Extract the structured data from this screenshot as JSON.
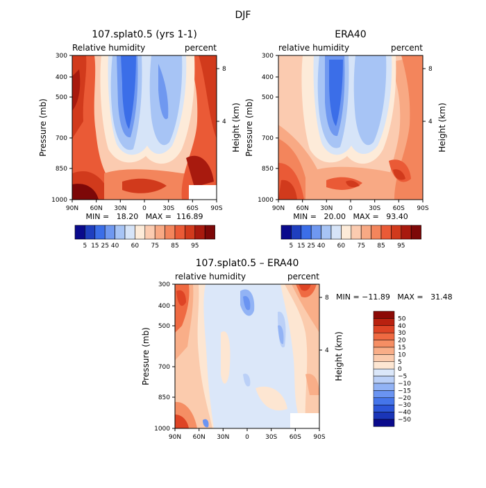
{
  "figure_title": "DJF",
  "colors": {
    "abs_scale": [
      "#0a0a8c",
      "#1f3fbf",
      "#3b6ee8",
      "#6f98f0",
      "#a7c4f5",
      "#d6e4f8",
      "#fdebd9",
      "#fbcbb0",
      "#f8a984",
      "#f3855c",
      "#ea5a36",
      "#d13a1c",
      "#a81a0e",
      "#7d0808"
    ],
    "diff_scale": [
      "#0a0a8c",
      "#1a35b8",
      "#2c55d8",
      "#4575ea",
      "#6a94f2",
      "#92b3f5",
      "#bbd0f7",
      "#dbe7f9",
      "#fde6d2",
      "#fbcbad",
      "#f9ae88",
      "#f58e64",
      "#ef6a42",
      "#de4425",
      "#b9210f",
      "#8c0a06"
    ]
  },
  "chart_data": [
    {
      "type": "heatmap",
      "title": "107.splat0.5 (yrs 1-1)",
      "left_label": "Relative humidity",
      "right_label": "percent",
      "xlabel": "",
      "ylabel": "Pressure (mb)",
      "y2label": "Height (km)",
      "x_ticks": [
        "90N",
        "60N",
        "30N",
        "0",
        "30S",
        "60S",
        "90S"
      ],
      "y_ticks": [
        "300",
        "400",
        "500",
        "700",
        "850",
        "1000"
      ],
      "y2_ticks": [
        "8",
        "4"
      ],
      "stats": "MIN =   18.20   MAX =  116.89",
      "min": 18.2,
      "max": 116.89,
      "colorbar_labels": [
        "5",
        "15",
        "25",
        "40",
        "60",
        "75",
        "85",
        "95"
      ]
    },
    {
      "type": "heatmap",
      "title": "ERA40",
      "left_label": "relative humidity",
      "right_label": "percent",
      "xlabel": "",
      "ylabel": "Pressure (mb)",
      "y2label": "Height (km)",
      "x_ticks": [
        "90N",
        "60N",
        "30N",
        "0",
        "30S",
        "60S",
        "90S"
      ],
      "y_ticks": [
        "300",
        "400",
        "500",
        "700",
        "850",
        "1000"
      ],
      "y2_ticks": [
        "8",
        "4"
      ],
      "stats": "MIN =   20.00   MAX =   93.40",
      "min": 20.0,
      "max": 93.4,
      "colorbar_labels": [
        "5",
        "15",
        "25",
        "40",
        "60",
        "75",
        "85",
        "95"
      ]
    },
    {
      "type": "heatmap",
      "title": "107.splat0.5 – ERA40",
      "left_label": "relative humidity",
      "right_label": "percent",
      "xlabel": "",
      "ylabel": "Pressure (mb)",
      "y2label": "Height (km)",
      "x_ticks": [
        "90N",
        "60N",
        "30N",
        "0",
        "30S",
        "60S",
        "90S"
      ],
      "y_ticks": [
        "300",
        "400",
        "500",
        "700",
        "850",
        "1000"
      ],
      "y2_ticks": [
        "8",
        "4"
      ],
      "stats": "MIN = −11.89   MAX =   31.48",
      "min": -11.89,
      "max": 31.48,
      "colorbar_labels": [
        "50",
        "40",
        "30",
        "20",
        "15",
        "10",
        "5",
        "0",
        "−5",
        "−10",
        "−15",
        "−20",
        "−30",
        "−40",
        "−50"
      ]
    }
  ]
}
